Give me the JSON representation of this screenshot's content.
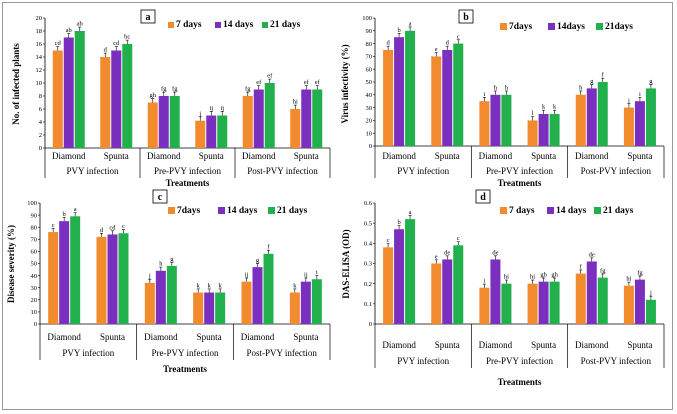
{
  "colors": {
    "7days": "#f28a2e",
    "14days": "#7b2fbf",
    "21days": "#21b04b",
    "axis": "#000000"
  },
  "chart_data": [
    {
      "type": "bar",
      "panel": "a",
      "ylabel": "No. of infected plants",
      "xlabel": "Treatments",
      "ylim": [
        0,
        20
      ],
      "yticks": [
        0,
        2,
        4,
        6,
        8,
        10,
        12,
        14,
        16,
        18,
        20
      ],
      "legend_position": "top-right",
      "categories": [
        "Diamond",
        "Spunta",
        "Diamond",
        "Spunta",
        "Diamond",
        "Spunta"
      ],
      "groups": [
        "PVY infection",
        "Pre-PVY infection",
        "Post-PVY infection"
      ],
      "series": [
        {
          "name": "7 days",
          "values": [
            15,
            14,
            7,
            4.2,
            8,
            6
          ],
          "labels": [
            "cd",
            "d",
            "gh",
            "j",
            "fg",
            "hi"
          ]
        },
        {
          "name": "14 days",
          "values": [
            17,
            15,
            8,
            5,
            9,
            9
          ],
          "labels": [
            "ab",
            "cd",
            "fg",
            "ij",
            "ef",
            "ef"
          ]
        },
        {
          "name": "21 days",
          "values": [
            18,
            16,
            8,
            5,
            10,
            9
          ],
          "labels": [
            "ab",
            "bc",
            "fg",
            "ij",
            "ef",
            "ef"
          ]
        }
      ]
    },
    {
      "type": "bar",
      "panel": "b",
      "ylabel": "Virus infectivity (%)",
      "xlabel": "Treatments",
      "ylim": [
        0,
        100
      ],
      "yticks": [
        0,
        10,
        20,
        30,
        40,
        50,
        60,
        70,
        80,
        90,
        100
      ],
      "legend_position": "top-right",
      "categories": [
        "Diamond",
        "Spunta",
        "Diamond",
        "Spunta",
        "Diamond",
        "Spunta"
      ],
      "groups": [
        "PVY infection",
        "Pre-PVY infection",
        "Post-PVY infection"
      ],
      "series": [
        {
          "name": "7days",
          "values": [
            75,
            70,
            35,
            20,
            40,
            30
          ],
          "labels": [
            "d",
            "e",
            "i",
            "l",
            "h",
            "j"
          ]
        },
        {
          "name": "14days",
          "values": [
            85,
            75,
            40,
            25,
            45,
            35
          ],
          "labels": [
            "b",
            "d",
            "h",
            "k",
            "g",
            "i"
          ]
        },
        {
          "name": "21days",
          "values": [
            90,
            80,
            40,
            25,
            50,
            45
          ],
          "labels": [
            "a",
            "c",
            "h",
            "k",
            "f",
            "g"
          ]
        }
      ]
    },
    {
      "type": "bar",
      "panel": "c",
      "ylabel": "Disease severity (%)",
      "xlabel": "Treatments",
      "ylim": [
        0,
        100
      ],
      "yticks": [
        0,
        10,
        20,
        30,
        40,
        50,
        60,
        70,
        80,
        90,
        100
      ],
      "legend_position": "top-right",
      "categories": [
        "Diamond",
        "Spunta",
        "Diamond",
        "Spunta",
        "Diamond",
        "Spunta"
      ],
      "groups": [
        "PVY infection",
        "Pre-PVY infection",
        "Post-PVY infection"
      ],
      "series": [
        {
          "name": "7days",
          "values": [
            76,
            72,
            34,
            26,
            35,
            26
          ],
          "labels": [
            "c",
            "d",
            "j",
            "k",
            "ij",
            "k"
          ]
        },
        {
          "name": "14 days",
          "values": [
            85,
            74,
            44,
            26,
            47,
            35
          ],
          "labels": [
            "b",
            "cd",
            "h",
            "k",
            "g",
            "ij"
          ]
        },
        {
          "name": "21 days",
          "values": [
            89,
            75,
            48,
            26,
            58,
            37
          ],
          "labels": [
            "a",
            "c",
            "g",
            "k",
            "f",
            "i"
          ]
        }
      ]
    },
    {
      "type": "bar",
      "panel": "d",
      "ylabel": "DAS-ELISA (OD)",
      "xlabel": "Treatments",
      "ylim": [
        0,
        0.6
      ],
      "yticks": [
        0,
        0.1,
        0.2,
        0.3,
        0.4,
        0.5,
        0.6
      ],
      "legend_position": "top-right",
      "categories": [
        "Diamond",
        "Spunta",
        "Diamond",
        "Spunta",
        "Diamond",
        "Spunta"
      ],
      "groups": [
        "PVY infection",
        "Pre-PVY infection",
        "Post-PVY infection"
      ],
      "series": [
        {
          "name": "7 days",
          "values": [
            0.38,
            0.3,
            0.18,
            0.2,
            0.25,
            0.19
          ],
          "labels": [
            "c",
            "e",
            "i",
            "hi",
            "f",
            "hi"
          ]
        },
        {
          "name": "14 days",
          "values": [
            0.47,
            0.32,
            0.32,
            0.21,
            0.31,
            0.22
          ],
          "labels": [
            "b",
            "de",
            "de",
            "gh",
            "de",
            "fg"
          ]
        },
        {
          "name": "21 days",
          "values": [
            0.52,
            0.39,
            0.2,
            0.21,
            0.23,
            0.12
          ],
          "labels": [
            "a",
            "c",
            "hi",
            "gh",
            "fg",
            "j"
          ]
        }
      ]
    }
  ]
}
